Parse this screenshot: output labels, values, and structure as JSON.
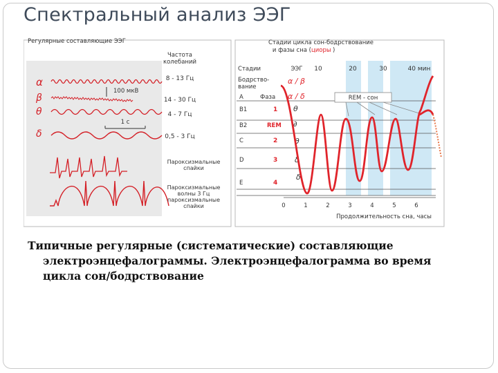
{
  "slide": {
    "title": "Спектральный анализ ЭЭГ",
    "caption_lines": [
      "Типичные регулярные (систематические) составляющие",
      "электроэнцефалограммы. Электроэнцефалограмма во время",
      "цикла сон/бодрствование"
    ]
  },
  "left_panel": {
    "title": "Регулярные составляющие ЭЭГ",
    "freq_header": [
      "Частота",
      "колебаний"
    ],
    "bands": [
      {
        "symbol": "α",
        "freq": "8 - 13 Гц"
      },
      {
        "symbol": "β",
        "freq": "14 - 30 Гц"
      },
      {
        "symbol": "θ",
        "freq": "4 - 7 Гц"
      },
      {
        "symbol": "δ",
        "freq": "0,5 - 3 Гц"
      }
    ],
    "scale_amplitude": "100 мкВ",
    "scale_time": "1 с",
    "paroxysm_1": [
      "Пароксизмальные",
      "спайки"
    ],
    "paroxysm_2": [
      "Пароксизмальные",
      "волны 3 Гц",
      "пароксизмальные",
      "спайки"
    ]
  },
  "right_panel": {
    "title_lines": [
      "Стадии цикла сон-бодрствование",
      "и фазы сна ("
    ],
    "title_red": "циоры",
    "title_end": ")",
    "col_stage": "Стадии",
    "col_eeg": "ЭЭГ",
    "col_phase": "Фаза",
    "top_ticks": [
      "10",
      "20",
      "30",
      "40 мин"
    ],
    "rows": [
      {
        "stage": "Бодрство-",
        "stage2": "вание",
        "phase": "",
        "wave": "α / β"
      },
      {
        "stage": "А",
        "phase": "",
        "wave": "α / δ"
      },
      {
        "stage": "В1",
        "phase": "1",
        "wave": "θ"
      },
      {
        "stage": "В2",
        "phase": "REM",
        "wave": "∂"
      },
      {
        "stage": "С",
        "phase": "2",
        "wave": "θ"
      },
      {
        "stage": "D",
        "phase": "3",
        "wave": "δ"
      },
      {
        "stage": "E",
        "phase": "4",
        "wave": "δ"
      }
    ],
    "rem_label": "REM - сон",
    "bottom_ticks": [
      "0",
      "1",
      "2",
      "3",
      "4",
      "5",
      "6"
    ],
    "x_axis_label": "Продолжительность сна, часы",
    "colors": {
      "red": "#e0242b",
      "rem_band": "#cfe8f5",
      "grid": "#555555",
      "panel_border": "#b8b8b8"
    }
  }
}
